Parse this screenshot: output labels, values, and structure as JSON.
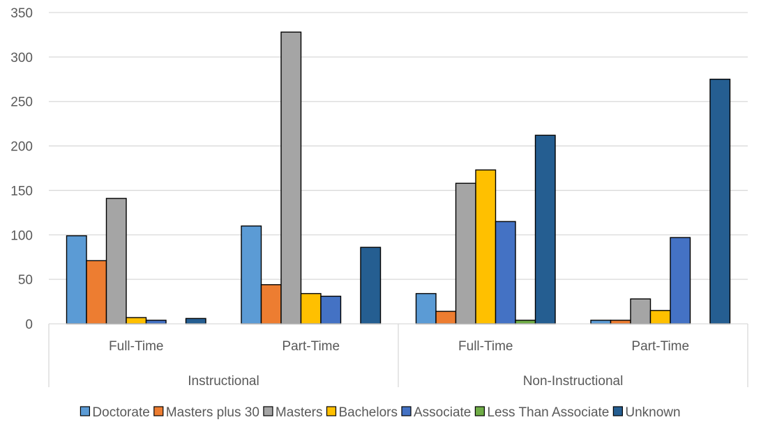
{
  "chart_data": {
    "type": "bar",
    "ylim": [
      0,
      350
    ],
    "yticks": [
      0,
      50,
      100,
      150,
      200,
      250,
      300,
      350
    ],
    "grid": true,
    "legend_position": "bottom",
    "groups": [
      {
        "label": "Instructional",
        "categories": [
          "Full-Time",
          "Part-Time"
        ]
      },
      {
        "label": "Non-Instructional",
        "categories": [
          "Full-Time",
          "Part-Time"
        ]
      }
    ],
    "categories": [
      "Full-Time",
      "Part-Time",
      "Full-Time",
      "Part-Time"
    ],
    "series": [
      {
        "name": "Doctorate",
        "color": "#5b9bd5",
        "values": [
          99,
          110,
          34,
          4
        ]
      },
      {
        "name": "Masters plus 30",
        "color": "#ed7d31",
        "values": [
          71,
          44,
          14,
          4
        ]
      },
      {
        "name": "Masters",
        "color": "#a5a5a5",
        "values": [
          141,
          328,
          158,
          28
        ]
      },
      {
        "name": "Bachelors",
        "color": "#ffc000",
        "values": [
          7,
          34,
          173,
          15
        ]
      },
      {
        "name": "Associate",
        "color": "#4472c4",
        "values": [
          4,
          31,
          115,
          97
        ]
      },
      {
        "name": "Less Than Associate",
        "color": "#70ad47",
        "values": [
          0,
          0,
          4,
          0
        ]
      },
      {
        "name": "Unknown",
        "color": "#255e91",
        "values": [
          6,
          86,
          212,
          275
        ]
      }
    ]
  }
}
